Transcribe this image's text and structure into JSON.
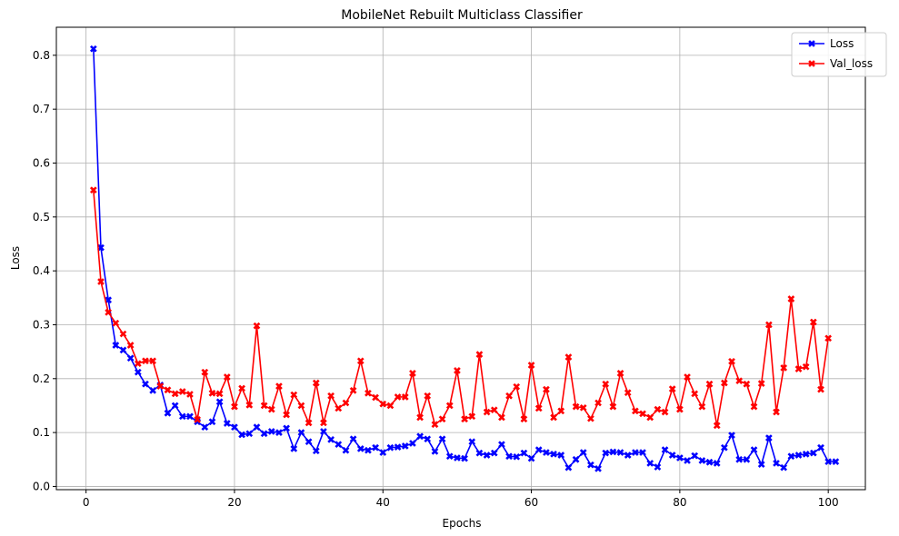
{
  "chart_data": {
    "type": "line",
    "title": "MobileNet Rebuilt Multiclass Classifier",
    "xlabel": "Epochs",
    "ylabel": "Loss",
    "xlim": [
      -4,
      105
    ],
    "ylim": [
      -0.006,
      0.852
    ],
    "xticks": [
      0,
      20,
      40,
      60,
      80,
      100
    ],
    "yticks": [
      0.0,
      0.1,
      0.2,
      0.3,
      0.4,
      0.5,
      0.6,
      0.7,
      0.8
    ],
    "grid": true,
    "legend_position": "top-right",
    "marker": "X",
    "series": [
      {
        "name": "Loss",
        "color": "#0000ff",
        "values": [
          0.812,
          0.443,
          0.346,
          0.262,
          0.253,
          0.238,
          0.212,
          0.19,
          0.178,
          0.188,
          0.136,
          0.15,
          0.13,
          0.13,
          0.12,
          0.11,
          0.12,
          0.157,
          0.117,
          0.11,
          0.096,
          0.098,
          0.11,
          0.098,
          0.102,
          0.1,
          0.108,
          0.07,
          0.1,
          0.083,
          0.066,
          0.102,
          0.087,
          0.078,
          0.067,
          0.088,
          0.07,
          0.067,
          0.072,
          0.063,
          0.072,
          0.073,
          0.075,
          0.08,
          0.093,
          0.088,
          0.065,
          0.088,
          0.056,
          0.053,
          0.052,
          0.083,
          0.062,
          0.058,
          0.062,
          0.078,
          0.056,
          0.055,
          0.062,
          0.052,
          0.068,
          0.063,
          0.06,
          0.058,
          0.035,
          0.05,
          0.063,
          0.04,
          0.033,
          0.062,
          0.064,
          0.063,
          0.058,
          0.063,
          0.063,
          0.043,
          0.036,
          0.068,
          0.058,
          0.053,
          0.048,
          0.057,
          0.048,
          0.045,
          0.043,
          0.072,
          0.095,
          0.05,
          0.05,
          0.068,
          0.041,
          0.09,
          0.043,
          0.035,
          0.056,
          0.058,
          0.06,
          0.062,
          0.072,
          0.046,
          0.046
        ]
      },
      {
        "name": "Val_loss",
        "color": "#ff0000",
        "values": [
          0.55,
          0.38,
          0.323,
          0.303,
          0.283,
          0.262,
          0.228,
          0.233,
          0.233,
          0.186,
          0.179,
          0.172,
          0.176,
          0.171,
          0.124,
          0.212,
          0.173,
          0.172,
          0.203,
          0.148,
          0.182,
          0.151,
          0.298,
          0.15,
          0.143,
          0.186,
          0.133,
          0.17,
          0.15,
          0.118,
          0.192,
          0.118,
          0.168,
          0.145,
          0.155,
          0.178,
          0.233,
          0.173,
          0.165,
          0.153,
          0.15,
          0.166,
          0.166,
          0.21,
          0.128,
          0.168,
          0.115,
          0.125,
          0.15,
          0.215,
          0.125,
          0.13,
          0.245,
          0.138,
          0.142,
          0.128,
          0.168,
          0.185,
          0.125,
          0.225,
          0.145,
          0.18,
          0.128,
          0.14,
          0.24,
          0.148,
          0.146,
          0.126,
          0.155,
          0.19,
          0.148,
          0.21,
          0.174,
          0.14,
          0.135,
          0.128,
          0.143,
          0.138,
          0.181,
          0.143,
          0.203,
          0.172,
          0.148,
          0.19,
          0.113,
          0.192,
          0.232,
          0.196,
          0.19,
          0.148,
          0.191,
          0.3,
          0.138,
          0.22,
          0.348,
          0.218,
          0.222,
          0.305,
          0.18,
          0.275
        ]
      }
    ]
  }
}
